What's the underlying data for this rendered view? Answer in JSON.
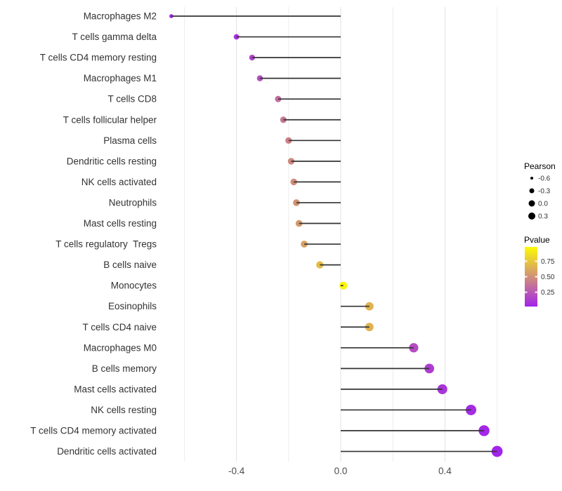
{
  "chart_data": {
    "type": "lollipop",
    "title": "",
    "xlabel": "",
    "ylabel": "",
    "baseline": 0,
    "xlim": [
      -0.69,
      0.68
    ],
    "x_major_ticks": [
      {
        "label": "-0.4",
        "value": -0.4
      },
      {
        "label": "0.0",
        "value": 0.0
      },
      {
        "label": "0.4",
        "value": 0.4
      }
    ],
    "x_minor_ticks": [
      -0.6,
      -0.2,
      0.2,
      0.6
    ],
    "grid": true,
    "points": [
      {
        "label": "Macrophages M2",
        "pearson": -0.65,
        "pvalue": 0.05
      },
      {
        "label": "T cells gamma delta",
        "pearson": -0.4,
        "pvalue": 0.08
      },
      {
        "label": "T cells CD4 memory resting",
        "pearson": -0.34,
        "pvalue": 0.15
      },
      {
        "label": "Macrophages M1",
        "pearson": -0.31,
        "pvalue": 0.2
      },
      {
        "label": "T cells CD8",
        "pearson": -0.24,
        "pvalue": 0.35
      },
      {
        "label": "T cells follicular helper",
        "pearson": -0.22,
        "pvalue": 0.4
      },
      {
        "label": "Plasma cells",
        "pearson": -0.2,
        "pvalue": 0.44
      },
      {
        "label": "Dendritic cells resting",
        "pearson": -0.19,
        "pvalue": 0.47
      },
      {
        "label": "NK cells activated",
        "pearson": -0.18,
        "pvalue": 0.49
      },
      {
        "label": "Neutrophils",
        "pearson": -0.17,
        "pvalue": 0.51
      },
      {
        "label": "Mast cells resting",
        "pearson": -0.16,
        "pvalue": 0.55
      },
      {
        "label": "T cells regulatory  Tregs",
        "pearson": -0.14,
        "pvalue": 0.58
      },
      {
        "label": "B cells naive",
        "pearson": -0.08,
        "pvalue": 0.7
      },
      {
        "label": "Monocytes",
        "pearson": 0.01,
        "pvalue": 0.95
      },
      {
        "label": "Eosinophils",
        "pearson": 0.11,
        "pvalue": 0.66
      },
      {
        "label": "T cells CD4 naive",
        "pearson": 0.11,
        "pvalue": 0.66
      },
      {
        "label": "Macrophages M0",
        "pearson": 0.28,
        "pvalue": 0.2
      },
      {
        "label": "B cells memory",
        "pearson": 0.34,
        "pvalue": 0.13
      },
      {
        "label": "Mast cells activated",
        "pearson": 0.39,
        "pvalue": 0.09
      },
      {
        "label": "NK cells resting",
        "pearson": 0.5,
        "pvalue": 0.05
      },
      {
        "label": "T cells CD4 memory activated",
        "pearson": 0.55,
        "pvalue": 0.03
      },
      {
        "label": "Dendritic cells activated",
        "pearson": 0.6,
        "pvalue": 0.02
      }
    ],
    "legend": {
      "size": {
        "title": "Pearson",
        "entries": [
          {
            "label": "-0.6",
            "diameter": 4
          },
          {
            "label": "-0.3",
            "diameter": 7
          },
          {
            "label": "0.0",
            "diameter": 9
          },
          {
            "label": "0.3",
            "diameter": 10
          }
        ]
      },
      "color": {
        "title": "Pvalue",
        "ticks": [
          {
            "label": "0.75",
            "value": 0.75
          },
          {
            "label": "0.50",
            "value": 0.5
          },
          {
            "label": "0.25",
            "value": 0.25
          }
        ],
        "scale_low_color": "#A020F0",
        "scale_high_color": "#FFFF00",
        "bar_value_range": [
          0.02,
          0.98
        ]
      }
    },
    "colors": {
      "segment": "#333333",
      "grid_major": "#E2E2E2",
      "grid_minor": "#EDEDED",
      "axis_text": "#4D4D4D",
      "category_text": "#333333",
      "legend_title_text": "#000000",
      "legend_text": "#333333",
      "legend_dot": "#000000",
      "background": "#FFFFFF",
      "colorbar_tick": "#FFFFFF"
    }
  }
}
